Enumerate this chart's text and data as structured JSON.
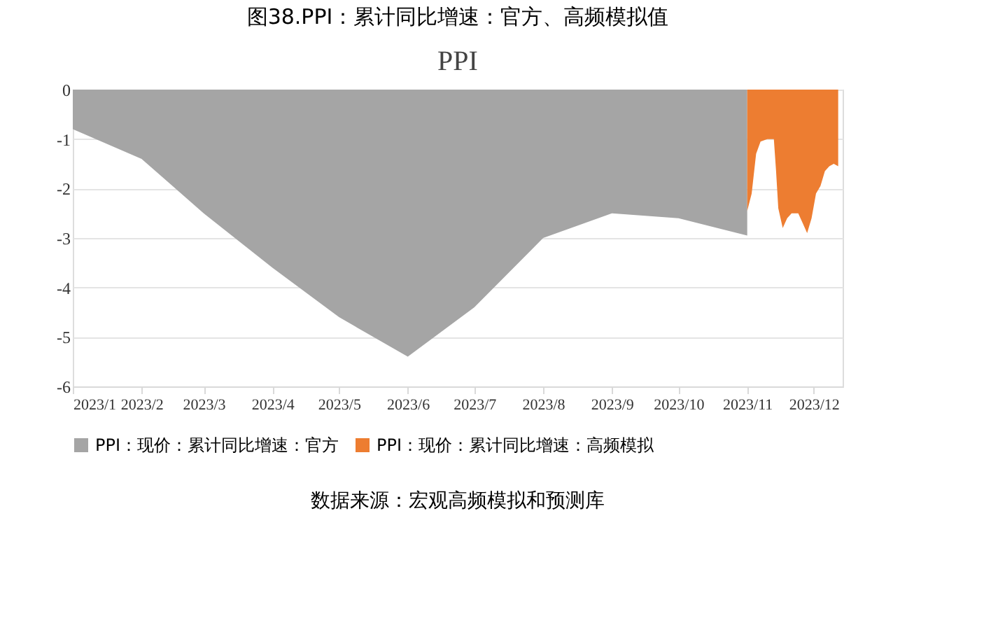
{
  "chart_data": {
    "type": "area",
    "title": "图38.PPI：累计同比增速：官方、高频模拟值",
    "subtitle": "PPI",
    "series": [
      {
        "name": "PPI：现价：累计同比增速：官方",
        "color": "#a5a5a5",
        "x": [
          "2023-01-01",
          "2023-02-01",
          "2023-03-01",
          "2023-04-01",
          "2023-05-01",
          "2023-06-01",
          "2023-07-01",
          "2023-08-01",
          "2023-09-01",
          "2023-10-01",
          "2023-11-01"
        ],
        "values": [
          -0.8,
          -1.4,
          -2.5,
          -3.6,
          -4.6,
          -5.4,
          -4.4,
          -3.0,
          -2.5,
          -2.6,
          -2.95
        ]
      },
      {
        "name": "PPI：现价：累计同比增速：高频模拟",
        "color": "#ed7d31",
        "x": [
          "2023-11-01",
          "2023-11-03",
          "2023-11-05",
          "2023-11-07",
          "2023-11-10",
          "2023-11-13",
          "2023-11-14",
          "2023-11-15",
          "2023-11-17",
          "2023-11-19",
          "2023-11-21",
          "2023-11-24",
          "2023-11-26",
          "2023-11-28",
          "2023-11-30",
          "2023-12-02",
          "2023-12-04",
          "2023-12-06",
          "2023-12-08",
          "2023-12-10",
          "2023-12-12"
        ],
        "values": [
          -2.45,
          -2.1,
          -1.3,
          -1.05,
          -1.0,
          -1.0,
          -1.65,
          -2.4,
          -2.8,
          -2.6,
          -2.5,
          -2.5,
          -2.7,
          -2.9,
          -2.6,
          -2.1,
          -1.95,
          -1.65,
          -1.55,
          -1.5,
          -1.55
        ]
      }
    ],
    "xlim": [
      "2023-01-01",
      "2023-12-14"
    ],
    "xticks": [
      {
        "value": "2023-01-01",
        "label": "2023/1"
      },
      {
        "value": "2023-02-01",
        "label": "2023/2"
      },
      {
        "value": "2023-03-01",
        "label": "2023/3"
      },
      {
        "value": "2023-04-01",
        "label": "2023/4"
      },
      {
        "value": "2023-05-01",
        "label": "2023/5"
      },
      {
        "value": "2023-06-01",
        "label": "2023/6"
      },
      {
        "value": "2023-07-01",
        "label": "2023/7"
      },
      {
        "value": "2023-08-01",
        "label": "2023/8"
      },
      {
        "value": "2023-09-01",
        "label": "2023/9"
      },
      {
        "value": "2023-10-01",
        "label": "2023/10"
      },
      {
        "value": "2023-11-01",
        "label": "2023/11"
      },
      {
        "value": "2023-12-01",
        "label": "2023/12"
      }
    ],
    "ylim": [
      -6,
      0
    ],
    "yticks": [
      -6,
      -5,
      -4,
      -3,
      -2,
      -1,
      0
    ],
    "grid": "y",
    "legend": "bottom",
    "annotations": [
      "数据来源：宏观高频模拟和预测库"
    ]
  }
}
